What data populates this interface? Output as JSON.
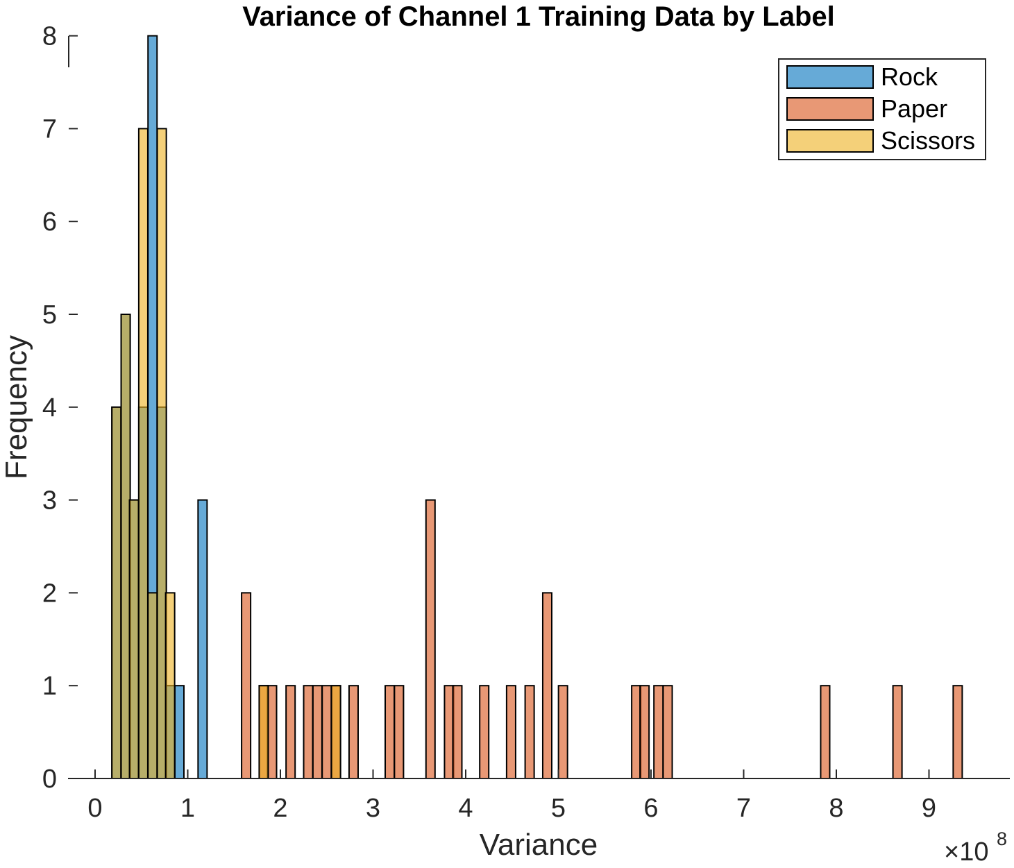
{
  "chart_data": {
    "type": "bar",
    "title": "Variance of Channel 1 Training Data by Label",
    "xlabel": "Variance",
    "ylabel": "Frequency",
    "x_exponent_label": "×10",
    "x_exponent_power": "8",
    "xlim": [
      -0.3,
      9.9
    ],
    "ylim": [
      0,
      8
    ],
    "xticks": [
      "0",
      "1",
      "2",
      "3",
      "4",
      "5",
      "6",
      "7",
      "8",
      "9"
    ],
    "yticks": [
      "0",
      "1",
      "2",
      "3",
      "4",
      "5",
      "6",
      "7",
      "8"
    ],
    "x_scale": "×10^8",
    "bin_width": 0.0976,
    "grid": false,
    "legend_placement": "top-right",
    "series": [
      {
        "name": "Rock",
        "color": "#0072BD",
        "bins": [
          {
            "x": 0.23,
            "count": 4
          },
          {
            "x": 0.33,
            "count": 5
          },
          {
            "x": 0.42,
            "count": 3
          },
          {
            "x": 0.52,
            "count": 4
          },
          {
            "x": 0.62,
            "count": 8
          },
          {
            "x": 0.72,
            "count": 4
          },
          {
            "x": 0.81,
            "count": 1
          },
          {
            "x": 0.91,
            "count": 1
          },
          {
            "x": 1.16,
            "count": 3
          }
        ]
      },
      {
        "name": "Paper",
        "color": "#D95319",
        "bins": [
          {
            "x": 1.63,
            "count": 2
          },
          {
            "x": 1.82,
            "count": 1
          },
          {
            "x": 1.91,
            "count": 1
          },
          {
            "x": 2.11,
            "count": 1
          },
          {
            "x": 2.3,
            "count": 1
          },
          {
            "x": 2.4,
            "count": 1
          },
          {
            "x": 2.5,
            "count": 1
          },
          {
            "x": 2.6,
            "count": 1
          },
          {
            "x": 2.79,
            "count": 1
          },
          {
            "x": 3.18,
            "count": 1
          },
          {
            "x": 3.28,
            "count": 1
          },
          {
            "x": 3.62,
            "count": 3
          },
          {
            "x": 3.82,
            "count": 1
          },
          {
            "x": 3.91,
            "count": 1
          },
          {
            "x": 4.2,
            "count": 1
          },
          {
            "x": 4.49,
            "count": 1
          },
          {
            "x": 4.69,
            "count": 1
          },
          {
            "x": 4.88,
            "count": 2
          },
          {
            "x": 5.05,
            "count": 1
          },
          {
            "x": 5.84,
            "count": 1
          },
          {
            "x": 5.93,
            "count": 1
          },
          {
            "x": 6.08,
            "count": 1
          },
          {
            "x": 6.18,
            "count": 1
          },
          {
            "x": 7.88,
            "count": 1
          },
          {
            "x": 8.66,
            "count": 1
          },
          {
            "x": 9.31,
            "count": 1
          }
        ]
      },
      {
        "name": "Scissors",
        "color": "#EDB120",
        "bins": [
          {
            "x": 0.23,
            "count": 4
          },
          {
            "x": 0.33,
            "count": 5
          },
          {
            "x": 0.42,
            "count": 3
          },
          {
            "x": 0.52,
            "count": 7
          },
          {
            "x": 0.62,
            "count": 2
          },
          {
            "x": 0.72,
            "count": 7
          },
          {
            "x": 0.81,
            "count": 2
          },
          {
            "x": 1.82,
            "count": 1
          },
          {
            "x": 2.6,
            "count": 1
          }
        ]
      }
    ]
  }
}
